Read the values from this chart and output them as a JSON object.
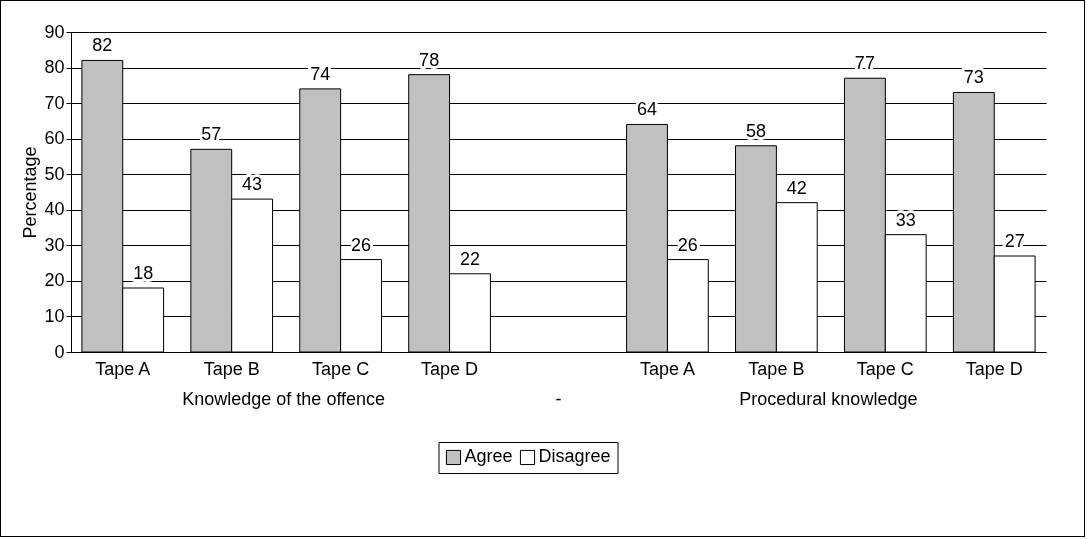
{
  "chart_data": {
    "type": "bar",
    "ylabel": "Percentage",
    "categories": [
      "Tape A",
      "Tape B",
      "Tape C",
      "Tape D",
      null,
      "Tape A",
      "Tape B",
      "Tape C",
      "Tape D"
    ],
    "series": [
      {
        "name": "Agree",
        "color": "#c0c0c0",
        "values": [
          82,
          57,
          74,
          78,
          null,
          64,
          58,
          77,
          73
        ]
      },
      {
        "name": "Disagree",
        "color": "#ffffff",
        "values": [
          18,
          43,
          26,
          22,
          null,
          26,
          42,
          33,
          27
        ]
      }
    ],
    "annotations": [
      "Knowledge of the offence",
      "-",
      "Procedural knowledge"
    ],
    "ylim": [
      0,
      90
    ],
    "yticks": [
      0,
      10,
      20,
      30,
      40,
      50,
      60,
      70,
      80,
      90
    ],
    "grid": "y",
    "legend": "bottom",
    "data_labels": true
  }
}
